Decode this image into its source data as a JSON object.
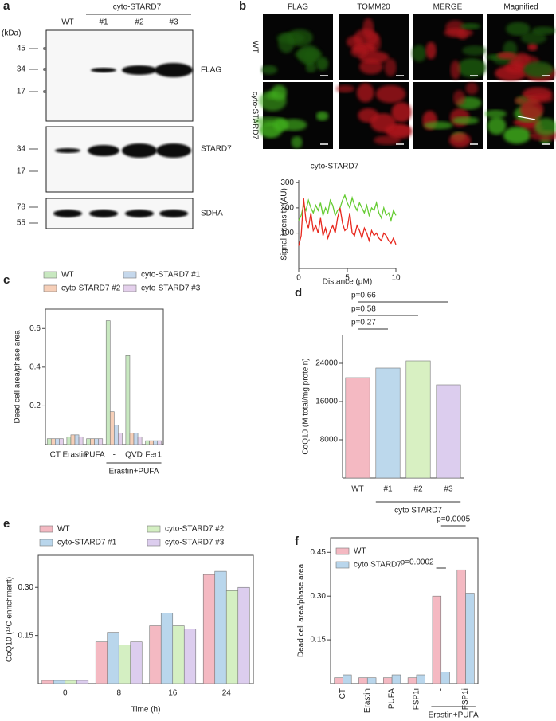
{
  "blots": {
    "panel": "a",
    "unit": "(kDa)",
    "header": "cyto-STARD7",
    "lanes": [
      "WT",
      "#1",
      "#2",
      "#3"
    ],
    "membranes": [
      {
        "label": "FLAG",
        "markers": [
          45,
          34,
          17
        ]
      },
      {
        "label": "STARD7",
        "markers": [
          34,
          17
        ]
      },
      {
        "label": "SDHA",
        "markers": [
          78,
          55
        ]
      }
    ]
  },
  "micrographs": {
    "panel": "b",
    "columns": [
      "FLAG",
      "TOMM20",
      "MERGE",
      "Magnified"
    ],
    "rows": [
      "WT",
      "cyto-STARD7"
    ]
  },
  "chart_data": [
    {
      "type": "line",
      "title": "cyto-STARD7",
      "xlabel": "Distance (μM)",
      "ylabel": "Signal intensity (AU)",
      "x": [
        0,
        0.25,
        0.5,
        0.75,
        1,
        1.25,
        1.5,
        1.75,
        2,
        2.25,
        2.5,
        2.75,
        3,
        3.25,
        3.5,
        3.75,
        4,
        4.25,
        4.5,
        4.75,
        5,
        5.25,
        5.5,
        5.75,
        6,
        6.25,
        6.5,
        6.75,
        7,
        7.25,
        7.5,
        7.75,
        8,
        8.25,
        8.5,
        8.75,
        9,
        9.25,
        9.5,
        9.75,
        10
      ],
      "series": [
        {
          "color": "#66cc33",
          "values": [
            150,
            170,
            210,
            190,
            230,
            200,
            180,
            210,
            190,
            220,
            170,
            200,
            180,
            230,
            210,
            170,
            190,
            200,
            230,
            250,
            220,
            200,
            240,
            210,
            190,
            220,
            200,
            180,
            210,
            170,
            200,
            190,
            220,
            180,
            160,
            200,
            170,
            180,
            150,
            190,
            170
          ]
        },
        {
          "color": "#e8281e",
          "values": [
            50,
            90,
            240,
            150,
            120,
            180,
            110,
            130,
            100,
            160,
            90,
            120,
            80,
            110,
            130,
            100,
            160,
            200,
            140,
            110,
            120,
            180,
            100,
            90,
            130,
            110,
            80,
            120,
            100,
            70,
            110,
            90,
            100,
            80,
            70,
            100,
            90,
            70,
            60,
            80,
            55
          ]
        }
      ],
      "xlim": [
        0,
        10
      ],
      "xticks": [
        0,
        5,
        10
      ],
      "ylim": [
        -40,
        310
      ],
      "yticks": [
        100,
        200,
        300
      ]
    },
    {
      "type": "bar",
      "panel": "c",
      "ylabel": "Dead cell area/phase area",
      "group_label": "Erastin+PUFA",
      "categories": [
        "CT",
        "Erastin",
        "PUFA",
        "-",
        "QVD",
        "Fer1"
      ],
      "series": [
        {
          "name": "WT",
          "color": "#c8e8c0",
          "values": [
            0.03,
            0.04,
            0.03,
            0.64,
            0.46,
            0.02
          ]
        },
        {
          "name": "cyto-STARD7 #2",
          "color": "#f6cfb8",
          "values": [
            0.03,
            0.05,
            0.03,
            0.17,
            0.06,
            0.02
          ]
        },
        {
          "name": "cyto-STARD7 #1",
          "color": "#c5d8ec",
          "values": [
            0.03,
            0.05,
            0.03,
            0.1,
            0.06,
            0.02
          ]
        },
        {
          "name": "cyto-STARD7 #3",
          "color": "#e4d0ec",
          "values": [
            0.03,
            0.04,
            0.03,
            0.06,
            0.04,
            0.02
          ]
        }
      ],
      "ylim": [
        0,
        0.7
      ],
      "yticks": [
        0.2,
        0.4,
        0.6
      ]
    },
    {
      "type": "bar",
      "panel": "d",
      "ylabel": "CoQ10 (M total/mg protein)",
      "group_label": "cyto STARD7",
      "categories": [
        "WT",
        "#1",
        "#2",
        "#3"
      ],
      "values": [
        21000,
        23000,
        24500,
        19500
      ],
      "colors": [
        "#f4b9c2",
        "#bcd8ec",
        "#d8f0c2",
        "#dccdee"
      ],
      "annotations": [
        "p=0.66",
        "p=0.58",
        "p=0.27"
      ],
      "ylim": [
        0,
        30000
      ],
      "yticks": [
        8000,
        16000,
        24000
      ]
    },
    {
      "type": "bar",
      "panel": "e",
      "ylabel": "CoQ10 (¹³C enrichment)",
      "xlabel": "Time (h)",
      "categories": [
        "0",
        "8",
        "16",
        "24"
      ],
      "series": [
        {
          "name": "WT",
          "color": "#f4b9c2",
          "values": [
            0.01,
            0.13,
            0.18,
            0.34
          ]
        },
        {
          "name": "cyto-STARD7 #1",
          "color": "#b9d6ec",
          "values": [
            0.01,
            0.16,
            0.22,
            0.35
          ]
        },
        {
          "name": "cyto-STARD7 #2",
          "color": "#d4efc2",
          "values": [
            0.01,
            0.12,
            0.18,
            0.29
          ]
        },
        {
          "name": "cyto-STARD7 #3",
          "color": "#dccdee",
          "values": [
            0.01,
            0.13,
            0.17,
            0.3
          ]
        }
      ],
      "ylim": [
        0,
        0.4
      ],
      "yticks": [
        0.15,
        {
          "value": 0.3,
          "label": "0.30"
        }
      ]
    },
    {
      "type": "bar",
      "panel": "f",
      "ylabel": "Dead cell area/phase area",
      "group_label": "Erastin+PUFA",
      "categories": [
        "CT",
        "Erastin",
        "PUFA",
        "FSP1i",
        "-",
        "FSP1i"
      ],
      "series": [
        {
          "name": "WT",
          "color": "#f4b9c2",
          "values": [
            0.02,
            0.02,
            0.02,
            0.02,
            0.3,
            0.39
          ]
        },
        {
          "name": "cyto STARD7",
          "color": "#b9d6ec",
          "values": [
            0.03,
            0.02,
            0.03,
            0.03,
            0.04,
            0.31
          ]
        }
      ],
      "annotations": [
        "p=0.0002",
        "p=0.0005"
      ],
      "ylim": [
        0,
        0.5
      ],
      "yticks": [
        0.15,
        {
          "value": 0.3,
          "label": "0.30"
        },
        0.45
      ]
    }
  ]
}
